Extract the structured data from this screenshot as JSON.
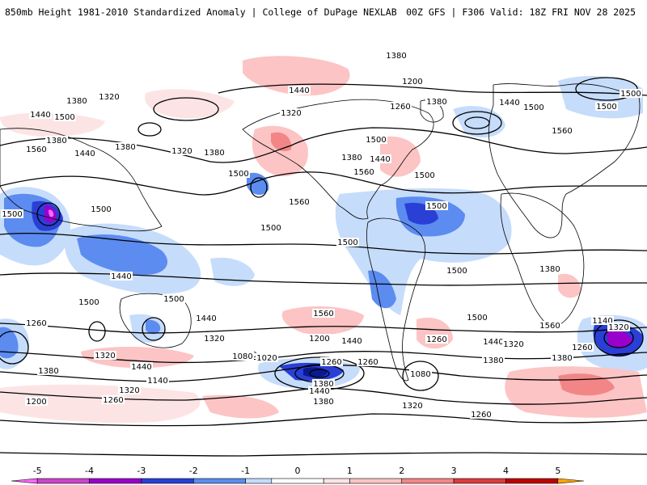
{
  "header": {
    "title_left": "850mb Height 1981-2010 Standardized Anomaly | College of DuPage NEXLAB",
    "title_right": "00Z GFS | F306 Valid: 18Z FRI NOV 28 2025"
  },
  "map": {
    "variable": "850mb geopotential height (contours) with standardized anomaly (shading)",
    "contour_labels": [
      "1380",
      "1440",
      "1320",
      "1380",
      "1500",
      "1440",
      "1560",
      "1380",
      "1440",
      "1380",
      "1320",
      "1380",
      "1320",
      "1260",
      "1200",
      "1380",
      "1440",
      "1500",
      "1560",
      "1500",
      "1500",
      "1440",
      "1380",
      "1500",
      "1560",
      "1500",
      "1500",
      "1560",
      "1500",
      "1500",
      "1500",
      "1500",
      "1500",
      "1500",
      "1440",
      "1500",
      "1500",
      "1440",
      "1560",
      "1440",
      "1560",
      "1500",
      "1440",
      "1380",
      "1320",
      "1260",
      "1380",
      "1440",
      "1320",
      "1140",
      "1200",
      "1260",
      "1320",
      "1380",
      "1260",
      "1140",
      "1080",
      "1260",
      "1320",
      "1380",
      "1440",
      "1380",
      "1260",
      "1020",
      "1080",
      "1140",
      "1200",
      "1260",
      "1320",
      "1380",
      "1260",
      "1320"
    ],
    "colors": {
      "land_border": "#000000",
      "contour": "#000000",
      "neg5": "#ff66ff",
      "neg4": "#9900cc",
      "neg3": "#2a3fd6",
      "neg2": "#5c8cf0",
      "neg1": "#c6dcfb",
      "pos1": "#fcd6d6",
      "pos2": "#f28686",
      "pos3": "#e03a3a",
      "pos4": "#c00000",
      "pos5": "#ffa500"
    }
  },
  "colorbar": {
    "labels": [
      "-5",
      "-4",
      "-3",
      "-2",
      "-1",
      "0",
      "1",
      "2",
      "3",
      "4",
      "5"
    ],
    "bins": [
      {
        "lo": -5.5,
        "hi": -5,
        "color": "#ff66ff"
      },
      {
        "lo": -5,
        "hi": -4,
        "color": "#cc44cc"
      },
      {
        "lo": -4,
        "hi": -3,
        "color": "#9900cc"
      },
      {
        "lo": -3,
        "hi": -2,
        "color": "#2a3fd6"
      },
      {
        "lo": -2,
        "hi": -1,
        "color": "#5c8cf0"
      },
      {
        "lo": -1,
        "hi": -0.5,
        "color": "#c6dcfb"
      },
      {
        "lo": -0.5,
        "hi": 0.5,
        "color": "#ffffff"
      },
      {
        "lo": 0.5,
        "hi": 1,
        "color": "#fde4e4"
      },
      {
        "lo": 1,
        "hi": 2,
        "color": "#fcc4c4"
      },
      {
        "lo": 2,
        "hi": 3,
        "color": "#f28686"
      },
      {
        "lo": 3,
        "hi": 4,
        "color": "#e03a3a"
      },
      {
        "lo": 4,
        "hi": 5,
        "color": "#c00000"
      },
      {
        "lo": 5,
        "hi": 5.5,
        "color": "#ffa500"
      }
    ]
  }
}
